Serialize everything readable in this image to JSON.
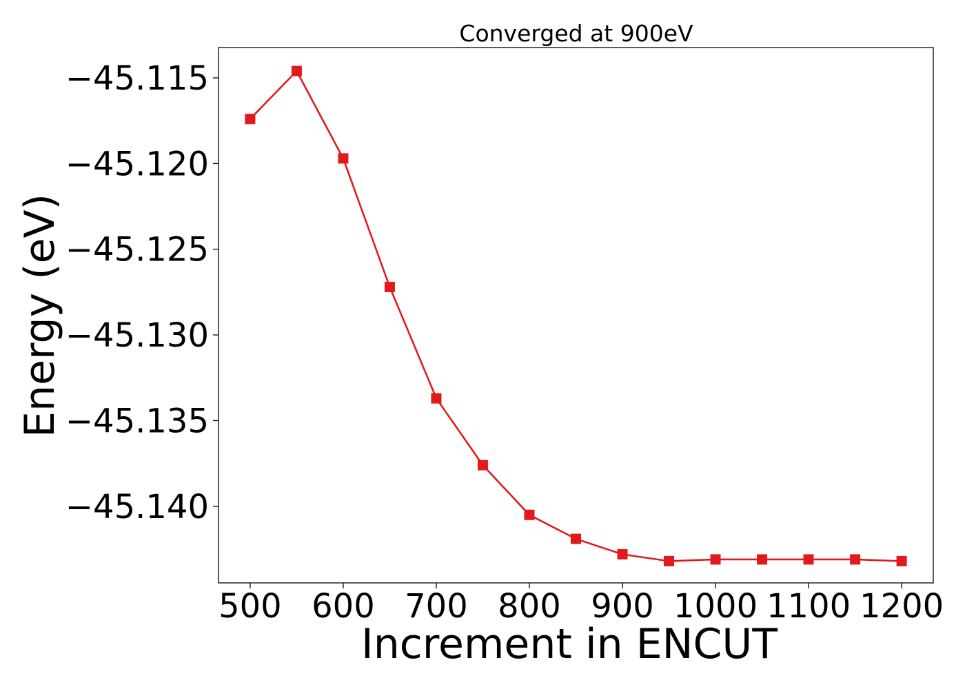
{
  "chart_data": {
    "type": "line",
    "title": "Converged at 900eV",
    "xlabel": "Increment in ENCUT",
    "ylabel": "Energy (eV)",
    "xlim": [
      466,
      1234
    ],
    "ylim": [
      -45.14447,
      -45.11323
    ],
    "x_ticks": [
      500,
      600,
      700,
      800,
      900,
      1000,
      1100,
      1200
    ],
    "x_tick_labels": [
      "500",
      "600",
      "700",
      "800",
      "900",
      "1000",
      "1100",
      "1200"
    ],
    "y_ticks": [
      -45.115,
      -45.12,
      -45.125,
      -45.13,
      -45.135,
      -45.14
    ],
    "y_tick_labels": [
      "−45.115",
      "−45.120",
      "−45.125",
      "−45.130",
      "−45.135",
      "−45.140"
    ],
    "grid": false,
    "series": [
      {
        "color": "#e31a1c",
        "marker": "square",
        "x": [
          500,
          550,
          600,
          650,
          700,
          750,
          800,
          850,
          900,
          950,
          1000,
          1050,
          1100,
          1150,
          1200
        ],
        "y": [
          -45.1174,
          -45.1146,
          -45.1197,
          -45.1272,
          -45.1337,
          -45.1376,
          -45.1405,
          -45.1419,
          -45.1428,
          -45.1432,
          -45.1431,
          -45.1431,
          -45.1431,
          -45.1431,
          -45.1432
        ]
      }
    ]
  }
}
